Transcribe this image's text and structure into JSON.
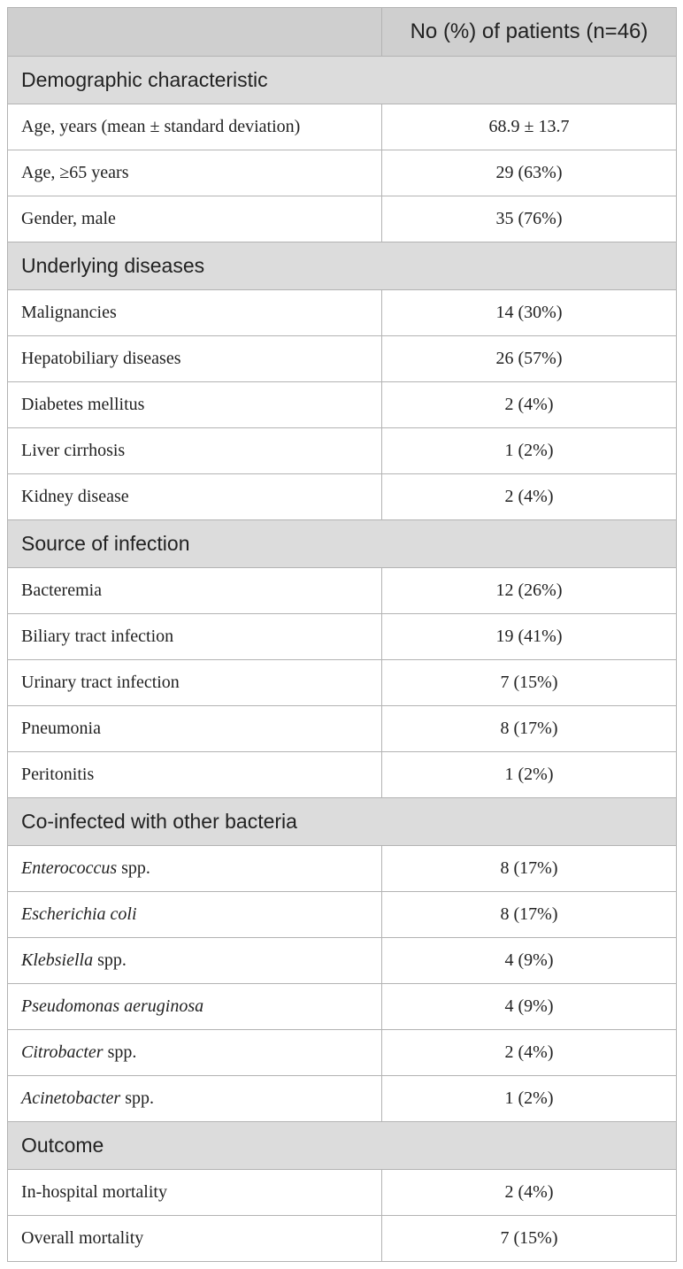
{
  "table": {
    "header": {
      "col1": "",
      "col2": "No (%) of patients (n=46)"
    },
    "sections": [
      {
        "title": "Demographic characteristic",
        "rows": [
          {
            "label": "Age, years (mean ± standard deviation)",
            "value": "68.9 ± 13.7"
          },
          {
            "label": "Age, ≥65 years",
            "value": "29 (63%)"
          },
          {
            "label": "Gender, male",
            "value": "35 (76%)"
          }
        ]
      },
      {
        "title": "Underlying diseases",
        "rows": [
          {
            "label": "Malignancies",
            "value": "14 (30%)"
          },
          {
            "label": "Hepatobiliary diseases",
            "value": "26 (57%)"
          },
          {
            "label": "Diabetes mellitus",
            "value": "2 (4%)"
          },
          {
            "label": "Liver cirrhosis",
            "value": "1 (2%)"
          },
          {
            "label": "Kidney disease",
            "value": "2 (4%)"
          }
        ]
      },
      {
        "title": "Source of infection",
        "rows": [
          {
            "label": "Bacteremia",
            "value": "12 (26%)"
          },
          {
            "label": "Biliary tract infection",
            "value": "19 (41%)"
          },
          {
            "label": "Urinary tract infection",
            "value": "7 (15%)"
          },
          {
            "label": "Pneumonia",
            "value": "8 (17%)"
          },
          {
            "label": "Peritonitis",
            "value": "1 (2%)"
          }
        ]
      },
      {
        "title": "Co-infected with other bacteria",
        "rows": [
          {
            "label_italic": "Enterococcus",
            "label_rest": " spp.",
            "value": "8 (17%)"
          },
          {
            "label_italic": "Escherichia coli",
            "label_rest": "",
            "value": "8 (17%)"
          },
          {
            "label_italic": "Klebsiella",
            "label_rest": " spp.",
            "value": "4 (9%)"
          },
          {
            "label_italic": "Pseudomonas aeruginosa",
            "label_rest": "",
            "value": "4 (9%)"
          },
          {
            "label_italic": "Citrobacter",
            "label_rest": " spp.",
            "value": "2 (4%)"
          },
          {
            "label_italic": "Acinetobacter",
            "label_rest": " spp.",
            "value": "1 (2%)"
          }
        ]
      },
      {
        "title": "Outcome",
        "rows": [
          {
            "label": "In-hospital mortality",
            "value": "2 (4%)"
          },
          {
            "label": "Overall mortality",
            "value": "7 (15%)"
          }
        ]
      }
    ]
  }
}
